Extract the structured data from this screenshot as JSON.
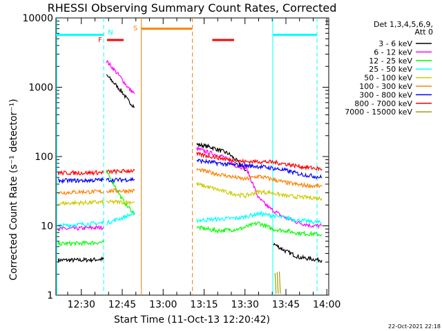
{
  "chart_data": {
    "type": "line",
    "title": "RHESSI Observing Summary Count Rates, Corrected",
    "xlabel": "Start Time (11-Oct-13 12:20:42)",
    "ylabel": "Corrected Count Rate (s⁻¹ detector⁻¹)",
    "yscale": "log",
    "ylim": [
      1,
      10000
    ],
    "xlim_minutes": [
      20.7,
      120.7
    ],
    "x_ticks": [
      {
        "label": "12:30",
        "min": 30
      },
      {
        "label": "12:45",
        "min": 45
      },
      {
        "label": "13:00",
        "min": 60
      },
      {
        "label": "13:15",
        "min": 75
      },
      {
        "label": "13:30",
        "min": 90
      },
      {
        "label": "13:45",
        "min": 105
      },
      {
        "label": "14:00",
        "min": 120
      }
    ],
    "y_ticks": [
      {
        "label": "1",
        "value": 1
      },
      {
        "label": "10",
        "value": 10
      },
      {
        "label": "100",
        "value": 100
      },
      {
        "label": "1000",
        "value": 1000
      },
      {
        "label": "10000",
        "value": 10000
      }
    ],
    "legend_header": [
      "Det 1,3,4,5,6,9,",
      "Att 0"
    ],
    "legend_position": "top-right",
    "footer": "22-Oct-2021 22:18",
    "series": [
      {
        "name": "3 - 6 keV",
        "color": "#000000",
        "segments": [
          [
            [
              21.5,
              3.2
            ],
            [
              30,
              3.2
            ],
            [
              38.2,
              3.3
            ]
          ],
          [
            [
              39.2,
              1500
            ],
            [
              42,
              1150
            ],
            [
              45,
              850
            ],
            [
              47,
              650
            ],
            [
              49.5,
              520
            ]
          ],
          [
            [
              72.3,
              150
            ],
            [
              78,
              135
            ],
            [
              84,
              110
            ],
            [
              88,
              80
            ],
            [
              90.5,
              62
            ]
          ],
          [
            [
              100.5,
              5.5
            ],
            [
              105,
              4.3
            ],
            [
              110,
              3.5
            ],
            [
              115,
              3.3
            ],
            [
              118.2,
              3.2
            ]
          ]
        ]
      },
      {
        "name": "6 - 12 keV",
        "color": "#ff00ff",
        "segments": [
          [
            [
              21.5,
              9
            ],
            [
              30,
              9.2
            ],
            [
              38.2,
              9.5
            ]
          ],
          [
            [
              39.2,
              2400
            ],
            [
              42,
              1800
            ],
            [
              45,
              1300
            ],
            [
              47,
              1000
            ],
            [
              49.5,
              800
            ]
          ],
          [
            [
              72.3,
              130
            ],
            [
              78,
              110
            ],
            [
              82,
              100
            ],
            [
              86,
              75
            ],
            [
              90.5,
              68
            ],
            [
              95,
              25
            ],
            [
              99,
              18
            ],
            [
              104,
              13.5
            ],
            [
              110,
              11
            ],
            [
              115,
              10
            ],
            [
              118.2,
              10
            ]
          ]
        ]
      },
      {
        "name": "12 - 25 keV",
        "color": "#00ff00",
        "segments": [
          [
            [
              21.5,
              5.5
            ],
            [
              30,
              5.6
            ],
            [
              38.2,
              5.8
            ]
          ],
          [
            [
              39.2,
              60
            ],
            [
              42,
              40
            ],
            [
              45,
              24
            ],
            [
              47,
              19
            ],
            [
              49.5,
              15
            ]
          ],
          [
            [
              72.3,
              9.5
            ],
            [
              80,
              8.5
            ],
            [
              88,
              9
            ],
            [
              95,
              11
            ],
            [
              100,
              9
            ],
            [
              105,
              8.5
            ],
            [
              110,
              7.8
            ],
            [
              118.2,
              7.5
            ]
          ]
        ]
      },
      {
        "name": "25 - 50 keV",
        "color": "#00ffff",
        "segments": [
          [
            [
              21.5,
              10
            ],
            [
              30,
              10.5
            ],
            [
              38.2,
              11
            ]
          ],
          [
            [
              39.2,
              11
            ],
            [
              42,
              12
            ],
            [
              45,
              13
            ],
            [
              47,
              14
            ],
            [
              49.5,
              15
            ]
          ],
          [
            [
              72.3,
              12
            ],
            [
              80,
              12.5
            ],
            [
              88,
              13
            ],
            [
              95,
              15
            ],
            [
              100,
              14
            ],
            [
              105,
              13
            ],
            [
              110,
              12
            ],
            [
              118.2,
              11
            ]
          ]
        ]
      },
      {
        "name": "50 - 100 keV",
        "color": "#cccc00",
        "segments": [
          [
            [
              21.5,
              21
            ],
            [
              30,
              21.5
            ],
            [
              38.2,
              22
            ]
          ],
          [
            [
              39.2,
              22
            ],
            [
              44,
              22
            ],
            [
              49.5,
              22
            ]
          ],
          [
            [
              72.3,
              40
            ],
            [
              78,
              35
            ],
            [
              84,
              30
            ],
            [
              90,
              27
            ],
            [
              95,
              31
            ],
            [
              100,
              30
            ],
            [
              105,
              27
            ],
            [
              110,
              26
            ],
            [
              118.2,
              25
            ]
          ]
        ]
      },
      {
        "name": "100 - 300 keV",
        "color": "#ff8000",
        "segments": [
          [
            [
              21.5,
              30
            ],
            [
              30,
              31
            ],
            [
              38.2,
              31
            ]
          ],
          [
            [
              39.2,
              32
            ],
            [
              44,
              32
            ],
            [
              49.5,
              32
            ]
          ],
          [
            [
              72.3,
              65
            ],
            [
              78,
              58
            ],
            [
              84,
              52
            ],
            [
              90,
              47
            ],
            [
              95,
              52
            ],
            [
              100,
              47
            ],
            [
              105,
              42
            ],
            [
              110,
              39
            ],
            [
              118.2,
              37
            ]
          ]
        ]
      },
      {
        "name": "300 - 800 keV",
        "color": "#0000ff",
        "segments": [
          [
            [
              21.5,
              45
            ],
            [
              30,
              45
            ],
            [
              38.2,
              46
            ]
          ],
          [
            [
              39.2,
              46
            ],
            [
              44,
              46
            ],
            [
              49.5,
              47
            ]
          ],
          [
            [
              72.3,
              88
            ],
            [
              78,
              82
            ],
            [
              84,
              77
            ],
            [
              90,
              74
            ],
            [
              95,
              72
            ],
            [
              100,
              68
            ],
            [
              105,
              63
            ],
            [
              110,
              56
            ],
            [
              118.2,
              50
            ]
          ]
        ]
      },
      {
        "name": "800 - 7000 keV",
        "color": "#ff0000",
        "segments": [
          [
            [
              21.5,
              58
            ],
            [
              30,
              58
            ],
            [
              38.2,
              59
            ]
          ],
          [
            [
              39.2,
              60
            ],
            [
              44,
              61
            ],
            [
              49.5,
              63
            ]
          ],
          [
            [
              72.3,
              108
            ],
            [
              78,
              100
            ],
            [
              84,
              90
            ],
            [
              90,
              84
            ],
            [
              95,
              85
            ],
            [
              100,
              83
            ],
            [
              105,
              78
            ],
            [
              110,
              72
            ],
            [
              118.2,
              66
            ]
          ]
        ]
      },
      {
        "name": "7000 - 15000 keV",
        "color": "#a0a000",
        "segments": [
          [
            [
              101,
              2
            ],
            [
              101.4,
              1.05
            ]
          ],
          [
            [
              101.8,
              2.2
            ],
            [
              102.2,
              1.05
            ]
          ],
          [
            [
              102.6,
              2.1
            ],
            [
              103,
              1.05
            ]
          ]
        ]
      }
    ],
    "markers": [
      {
        "label": "",
        "color": "#00ffff",
        "y_value": 5700,
        "ranges": [
          [
            20.7,
            38.2
          ],
          [
            100.2,
            116.4
          ]
        ]
      },
      {
        "label": "N",
        "color": "#00ffff",
        "y_value": 6700,
        "ranges": []
      },
      {
        "label": "F",
        "color": "#ff0000",
        "y_value": 4800,
        "ranges": [
          [
            39.4,
            45.5
          ],
          [
            78,
            86
          ]
        ]
      },
      {
        "label": "S",
        "color": "#ff8000",
        "y_value": 7000,
        "ranges": [
          [
            52,
            70.7
          ]
        ]
      }
    ],
    "vertical_lines": [
      {
        "color": "#00ffff",
        "dashed": true,
        "min": 38.2
      },
      {
        "color": "#00ffff",
        "dashed": true,
        "min": 116.4
      },
      {
        "color": "#00ffff",
        "dashed": false,
        "min": 100.2
      },
      {
        "color": "#ff8000",
        "dashed": false,
        "min": 52
      },
      {
        "color": "#ff8000",
        "dashed": true,
        "min": 70.7
      },
      {
        "color": "#00ffff",
        "dashed": false,
        "min": 21
      }
    ]
  }
}
